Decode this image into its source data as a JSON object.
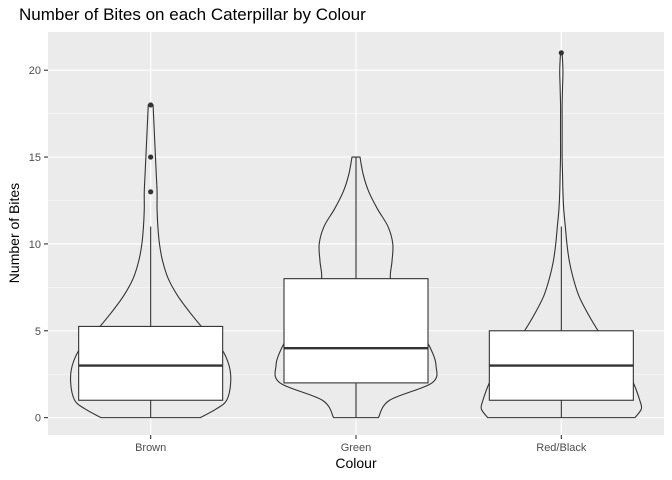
{
  "chart_data": {
    "type": "violin+boxplot",
    "title": "Number of Bites on each Caterpillar by Colour",
    "xlabel": "Colour",
    "ylabel": "Number of Bites",
    "categories": [
      "Brown",
      "Green",
      "Red/Black"
    ],
    "ylim": [
      -1,
      22.2
    ],
    "yticks": [
      0,
      5,
      10,
      15,
      20
    ],
    "grid": true,
    "legend": "none",
    "colors": {
      "panel": "#ebebeb",
      "grid_major": "#ffffff",
      "box_fill": "#ffffff",
      "line": "#333333",
      "tick_label": "#4d4d4d"
    },
    "series": [
      {
        "category": "Brown",
        "box": {
          "lower_whisker": 0,
          "q1": 1,
          "median": 3,
          "q3": 5.25,
          "upper_whisker": 11
        },
        "outliers": [
          13,
          15,
          18
        ],
        "violin": {
          "y": [
            0,
            0.5,
            1,
            2,
            3,
            4,
            5,
            6,
            7,
            8,
            9,
            10,
            11,
            12,
            13,
            14,
            15,
            16,
            17,
            18
          ],
          "width": [
            0.62,
            0.82,
            0.95,
            1.0,
            0.98,
            0.88,
            0.68,
            0.5,
            0.34,
            0.22,
            0.15,
            0.11,
            0.09,
            0.08,
            0.08,
            0.07,
            0.06,
            0.05,
            0.04,
            0.03
          ]
        }
      },
      {
        "category": "Green",
        "box": {
          "lower_whisker": 0,
          "q1": 2,
          "median": 4,
          "q3": 8,
          "upper_whisker": 15
        },
        "outliers": [],
        "violin": {
          "y": [
            0,
            1,
            2,
            3,
            4,
            5,
            6,
            7,
            8,
            9,
            10,
            11,
            12,
            13,
            14,
            15
          ],
          "width": [
            0.28,
            0.42,
            0.95,
            1.0,
            0.93,
            0.8,
            0.64,
            0.5,
            0.43,
            0.45,
            0.46,
            0.4,
            0.27,
            0.16,
            0.09,
            0.05
          ]
        }
      },
      {
        "category": "Red/Black",
        "box": {
          "lower_whisker": 0,
          "q1": 1,
          "median": 3,
          "q3": 5,
          "upper_whisker": 11
        },
        "outliers": [
          21
        ],
        "violin": {
          "y": [
            0,
            0.5,
            1,
            2,
            3,
            4,
            5,
            6,
            7,
            8,
            9,
            10,
            11,
            12,
            13,
            14,
            15,
            16,
            17,
            18,
            19,
            20,
            21
          ],
          "width": [
            0.92,
            1.0,
            0.98,
            0.9,
            0.78,
            0.62,
            0.46,
            0.33,
            0.22,
            0.15,
            0.1,
            0.07,
            0.05,
            0.03,
            0.02,
            0.015,
            0.01,
            0.01,
            0.01,
            0.01,
            0.015,
            0.02,
            0.01
          ]
        }
      }
    ]
  }
}
